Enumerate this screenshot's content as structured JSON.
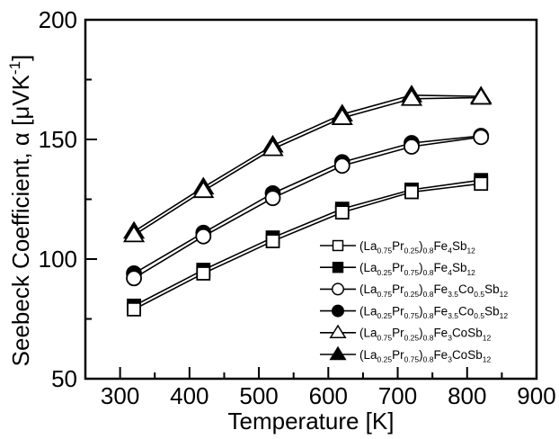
{
  "chart_data": {
    "type": "line",
    "title": "",
    "xlabel": "Temperature [K]",
    "ylabel": "Seebeck Coefficient, α [μVK⁻¹]",
    "ylabel_segments": [
      {
        "t": "Seebeck Coefficient, α [μVK"
      },
      {
        "sup": "-1"
      },
      {
        "t": "]"
      }
    ],
    "xlim": [
      250,
      900
    ],
    "ylim": [
      50,
      200
    ],
    "x_major_ticks": [
      300,
      400,
      500,
      600,
      700,
      800,
      900
    ],
    "x_minor_ticks": [
      350,
      450,
      550,
      650,
      750,
      850
    ],
    "y_major_ticks": [
      50,
      100,
      150,
      200
    ],
    "y_minor_ticks": [
      75,
      125,
      175
    ],
    "grid": false,
    "legend_position": "inside-lower-right",
    "foreground_color": "#000000",
    "background_color": "#ffffff",
    "x": [
      320,
      420,
      520,
      620,
      720,
      820
    ],
    "series": [
      {
        "name": "(La0.75Pr0.25)0.8Fe4Sb12",
        "marker": "square-open",
        "values": [
          79,
          94,
          107.5,
          119.5,
          128,
          131.5
        ],
        "name_segments": [
          {
            "t": "(La"
          },
          {
            "sub": "0.75"
          },
          {
            "t": "Pr"
          },
          {
            "sub": "0.25"
          },
          {
            "t": ")"
          },
          {
            "sub": "0.8"
          },
          {
            "t": "Fe"
          },
          {
            "sub": "4"
          },
          {
            "t": "Sb"
          },
          {
            "sub": "12"
          }
        ]
      },
      {
        "name": "(La0.25Pr0.75)0.8Fe4Sb12",
        "marker": "square-filled",
        "values": [
          80.5,
          95.5,
          109,
          121,
          129,
          133
        ],
        "name_segments": [
          {
            "t": "(La"
          },
          {
            "sub": "0.25"
          },
          {
            "t": "Pr"
          },
          {
            "sub": "0.75"
          },
          {
            "t": ")"
          },
          {
            "sub": "0.8"
          },
          {
            "t": "Fe"
          },
          {
            "sub": "4"
          },
          {
            "t": "Sb"
          },
          {
            "sub": "12"
          }
        ]
      },
      {
        "name": "(La0.75Pr0.25)0.8Fe3.5Co0.5Sb12",
        "marker": "circle-open",
        "values": [
          92,
          109.5,
          125.5,
          139,
          147,
          151
        ],
        "name_segments": [
          {
            "t": "(La"
          },
          {
            "sub": "0.75"
          },
          {
            "t": "Pr"
          },
          {
            "sub": "0.25"
          },
          {
            "t": ")"
          },
          {
            "sub": "0.8"
          },
          {
            "t": "Fe"
          },
          {
            "sub": "3.5"
          },
          {
            "t": "Co"
          },
          {
            "sub": "0.5"
          },
          {
            "t": "Sb"
          },
          {
            "sub": "12"
          }
        ]
      },
      {
        "name": "(La0.25Pr0.75)0.8Fe3.5Co0.5Sb12",
        "marker": "circle-filled",
        "values": [
          94,
          111,
          127.5,
          140.5,
          148.5,
          151.5
        ],
        "name_segments": [
          {
            "t": "(La"
          },
          {
            "sub": "0.25"
          },
          {
            "t": "Pr"
          },
          {
            "sub": "0.75"
          },
          {
            "t": ")"
          },
          {
            "sub": "0.8"
          },
          {
            "t": "Fe"
          },
          {
            "sub": "3.5"
          },
          {
            "t": "Co"
          },
          {
            "sub": "0.5"
          },
          {
            "t": "Sb"
          },
          {
            "sub": "12"
          }
        ]
      },
      {
        "name": "(La0.75Pr0.25)0.8Fe3CoSb12",
        "marker": "triangle-open",
        "values": [
          110,
          128.5,
          146,
          159,
          167,
          167.5
        ],
        "name_segments": [
          {
            "t": "(La"
          },
          {
            "sub": "0.75"
          },
          {
            "t": "Pr"
          },
          {
            "sub": "0.25"
          },
          {
            "t": ")"
          },
          {
            "sub": "0.8"
          },
          {
            "t": "Fe"
          },
          {
            "sub": "3"
          },
          {
            "t": "CoSb"
          },
          {
            "sub": "12"
          }
        ]
      },
      {
        "name": "(La0.25Pr0.75)0.8Fe3CoSb12",
        "marker": "triangle-filled",
        "values": [
          111.5,
          130,
          147.5,
          160.5,
          168.5,
          168
        ],
        "name_segments": [
          {
            "t": "(La"
          },
          {
            "sub": "0.25"
          },
          {
            "t": "Pr"
          },
          {
            "sub": "0.75"
          },
          {
            "t": ")"
          },
          {
            "sub": "0.8"
          },
          {
            "t": "Fe"
          },
          {
            "sub": "3"
          },
          {
            "t": "CoSb"
          },
          {
            "sub": "12"
          }
        ]
      }
    ]
  }
}
